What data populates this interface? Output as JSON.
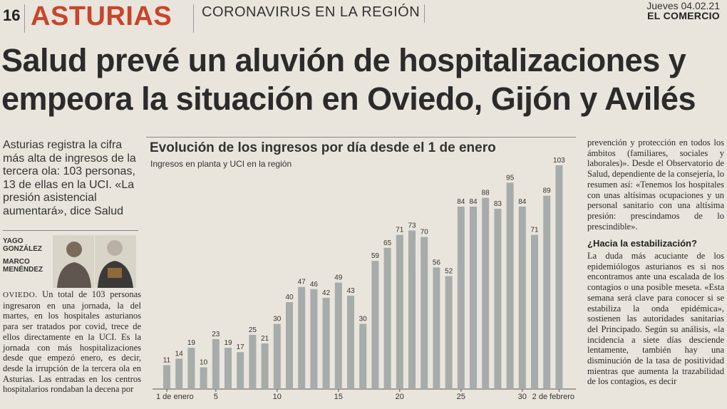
{
  "header": {
    "page_number": "16",
    "section": "ASTURIAS",
    "subsection": "CORONAVIRUS EN LA REGIÓN",
    "date": "Jueves 04.02.21",
    "newspaper": "EL COMERCIO"
  },
  "headline": {
    "line1": "Salud prevé un aluvión de hospitalizaciones y",
    "line2": "empeora la situación en Oviedo, Gijón y Avilés"
  },
  "lead": "Asturias registra la cifra más alta de ingresos de la tercera ola: 103 personas, 13 de ellas en la UCI. «La presión asistencial aumentará», dice Salud",
  "authors": {
    "author1_first": "YAGO",
    "author1_last": "GONZÁLEZ",
    "author2_first": "MARCO",
    "author2_last": "MENÉNDEZ"
  },
  "body_left": {
    "dateline": "OVIEDO.",
    "text": " Un total de 103 personas ingresaron en una jornada, la del martes, en los hospitales asturianos para ser tratados por covid, trece de ellos directamente en la UCI. Es la jornada con más hospitalizaciones desde que empezó enero, es decir, desde la irrupción de la tercera ola en Asturias. Las entradas en los centros hospitalarios rondaban la decena por"
  },
  "body_right": {
    "para1": "prevención y protección en todos los ámbitos (familiares, sociales y laborales)». Desde el Observatorio de Salud, dependiente de la consejería, lo resumen así: «Tenemos los hospitales con unas altísimas ocupaciones y un personal sanitario con una altísima presión: prescindamos de lo prescindible».",
    "subhead": "¿Hacia la estabilización?",
    "para2": "La duda más acuciante de los epidemiólogos asturianos es si nos encontramos ante una escalada de los contagios o una posible meseta. «Esta semana será clave para conocer si se estabiliza la onda epidémica», sostienen las autoridades sanitarias del Principado. Según su análisis, «la incidencia a siete días desciende lentamente, también hay una disminución de la tasa de positividad mientras que aumenta la trazabilidad de los contagios, es decir"
  },
  "chart_data": {
    "type": "bar",
    "title": "Evolución de los ingresos por día desde el 1 de enero",
    "subtitle": "Ingresos en planta y UCI en la región",
    "values": [
      11,
      14,
      19,
      10,
      23,
      19,
      17,
      25,
      21,
      30,
      40,
      47,
      46,
      42,
      49,
      43,
      30,
      59,
      65,
      71,
      73,
      70,
      56,
      52,
      84,
      84,
      88,
      83,
      95,
      84,
      71,
      89,
      103
    ],
    "tick_labels": [
      {
        "index": 0,
        "label": "1 de enero"
      },
      {
        "index": 4,
        "label": "5"
      },
      {
        "index": 9,
        "label": "10"
      },
      {
        "index": 14,
        "label": "15"
      },
      {
        "index": 19,
        "label": "20"
      },
      {
        "index": 24,
        "label": "25"
      },
      {
        "index": 29,
        "label": "30"
      },
      {
        "index": 32,
        "label": "2 de febrero"
      }
    ],
    "ylim": [
      0,
      103
    ],
    "bar_color": "#a6acaa"
  }
}
